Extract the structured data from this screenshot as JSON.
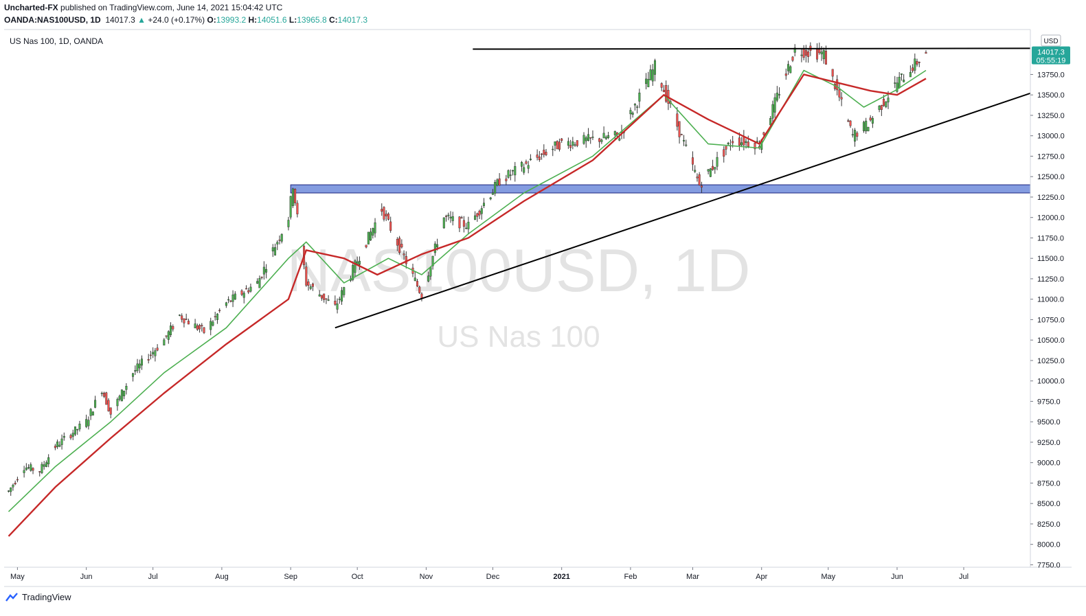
{
  "publish_line": {
    "author": "Uncharted-FX",
    "text": " published on TradingView.com, June 14, 2021 15:04:42 UTC"
  },
  "ohlc_line": {
    "symbol": "OANDA:NAS100USD, 1D",
    "last": "14017.3",
    "change": "+24.0 (+0.17%)",
    "o_label": "O:",
    "o": "13993.2",
    "h_label": "H:",
    "h": "14051.6",
    "l_label": "L:",
    "l": "13965.8",
    "c_label": "C:",
    "c": "14017.3"
  },
  "legend_text": "US Nas 100, 1D, OANDA",
  "watermark": {
    "symbol": "NAS100USD, 1D",
    "name": "US Nas 100"
  },
  "footer": {
    "brand": "TradingView"
  },
  "currency_badge": "USD",
  "price_tag": {
    "price": "14017.3",
    "countdown": "05:55:19"
  },
  "colors": {
    "up": "#26a69a",
    "down": "#ef5350",
    "candle_body_up": "#4caf50",
    "ema_fast": "#4caf50",
    "ema_slow": "#c62828",
    "zone_fill": "#5b7bd5",
    "zone_stroke": "#1a237e",
    "trendline": "#000000"
  },
  "chart_data": {
    "type": "candlestick",
    "y_axis_ticks": [
      7750,
      8000,
      8250,
      8500,
      8750,
      9000,
      9250,
      9500,
      9750,
      10000,
      10250,
      10500,
      10750,
      11000,
      11250,
      11500,
      11750,
      12000,
      12250,
      12500,
      12750,
      13000,
      13250,
      13500,
      13750
    ],
    "y_axis_labels": [
      "7750.0",
      "8000.0",
      "8250.0",
      "8500.0",
      "8750.0",
      "9000.0",
      "9250.0",
      "9500.0",
      "9750.0",
      "10000.0",
      "10250.0",
      "10500.0",
      "10750.0",
      "11000.0",
      "11250.0",
      "11500.0",
      "11750.0",
      "12000.0",
      "12250.0",
      "12500.0",
      "12750.0",
      "13000.0",
      "13250.0",
      "13500.0",
      "13750.0"
    ],
    "y_top_label": "1...",
    "ylim": [
      7720,
      14300
    ],
    "x_axis_labels": [
      "May",
      "Jun",
      "Jul",
      "Aug",
      "Sep",
      "Oct",
      "Nov",
      "Dec",
      "2021",
      "Feb",
      "Mar",
      "Apr",
      "May",
      "Jun",
      "Jul"
    ],
    "x_axis_dates": [
      "2020-05-01",
      "2020-06-01",
      "2020-07-01",
      "2020-08-01",
      "2020-09-01",
      "2020-10-01",
      "2020-11-01",
      "2020-12-01",
      "2021-01-01",
      "2021-02-01",
      "2021-03-01",
      "2021-04-01",
      "2021-05-01",
      "2021-06-01",
      "2021-07-01"
    ],
    "x_range": [
      "2020-04-25",
      "2021-07-31"
    ],
    "price_path": [
      [
        "2020-04-27",
        8650
      ],
      [
        "2020-05-04",
        8950
      ],
      [
        "2020-05-11",
        8900
      ],
      [
        "2020-05-18",
        9200
      ],
      [
        "2020-06-01",
        9500
      ],
      [
        "2020-06-08",
        9900
      ],
      [
        "2020-06-12",
        9600
      ],
      [
        "2020-06-22",
        10100
      ],
      [
        "2020-07-06",
        10500
      ],
      [
        "2020-07-13",
        10800
      ],
      [
        "2020-07-24",
        10600
      ],
      [
        "2020-08-03",
        10950
      ],
      [
        "2020-08-17",
        11200
      ],
      [
        "2020-08-31",
        12000
      ],
      [
        "2020-09-02",
        12400
      ],
      [
        "2020-09-08",
        11200
      ],
      [
        "2020-09-21",
        10900
      ],
      [
        "2020-10-12",
        12100
      ],
      [
        "2020-10-30",
        11050
      ],
      [
        "2020-11-09",
        12000
      ],
      [
        "2020-11-20",
        11900
      ],
      [
        "2020-12-04",
        12450
      ],
      [
        "2020-12-31",
        12900
      ],
      [
        "2021-01-27",
        13000
      ],
      [
        "2021-02-12",
        13850
      ],
      [
        "2021-03-04",
        12400
      ],
      [
        "2021-03-19",
        12950
      ],
      [
        "2021-03-31",
        12900
      ],
      [
        "2021-04-16",
        14050
      ],
      [
        "2021-04-29",
        14000
      ],
      [
        "2021-05-12",
        13000
      ],
      [
        "2021-05-19",
        13150
      ],
      [
        "2021-06-01",
        13650
      ],
      [
        "2021-06-14",
        14017
      ]
    ],
    "ema_fast_path": [
      [
        "2020-04-27",
        8400
      ],
      [
        "2020-05-18",
        8950
      ],
      [
        "2020-06-12",
        9500
      ],
      [
        "2020-07-06",
        10100
      ],
      [
        "2020-08-03",
        10650
      ],
      [
        "2020-08-31",
        11500
      ],
      [
        "2020-09-08",
        11700
      ],
      [
        "2020-09-25",
        11200
      ],
      [
        "2020-10-15",
        11500
      ],
      [
        "2020-10-30",
        11300
      ],
      [
        "2020-11-20",
        11800
      ],
      [
        "2020-12-15",
        12300
      ],
      [
        "2021-01-15",
        12750
      ],
      [
        "2021-02-16",
        13500
      ],
      [
        "2021-03-08",
        12900
      ],
      [
        "2021-03-31",
        12850
      ],
      [
        "2021-04-20",
        13800
      ],
      [
        "2021-05-05",
        13600
      ],
      [
        "2021-05-17",
        13350
      ],
      [
        "2021-05-31",
        13550
      ],
      [
        "2021-06-14",
        13800
      ]
    ],
    "ema_slow_path": [
      [
        "2020-04-27",
        8100
      ],
      [
        "2020-05-18",
        8700
      ],
      [
        "2020-06-12",
        9300
      ],
      [
        "2020-07-06",
        9850
      ],
      [
        "2020-08-03",
        10450
      ],
      [
        "2020-08-31",
        11000
      ],
      [
        "2020-09-08",
        11600
      ],
      [
        "2020-09-25",
        11500
      ],
      [
        "2020-10-10",
        11300
      ],
      [
        "2020-10-30",
        11550
      ],
      [
        "2020-11-20",
        11750
      ],
      [
        "2020-12-15",
        12200
      ],
      [
        "2021-01-15",
        12700
      ],
      [
        "2021-02-16",
        13500
      ],
      [
        "2021-03-08",
        13200
      ],
      [
        "2021-03-31",
        12900
      ],
      [
        "2021-04-20",
        13750
      ],
      [
        "2021-05-05",
        13650
      ],
      [
        "2021-05-20",
        13550
      ],
      [
        "2021-06-01",
        13500
      ],
      [
        "2021-06-14",
        13700
      ]
    ],
    "support_zone": {
      "from": "2020-09-01",
      "to": "2021-07-31",
      "low": 12300,
      "high": 12400
    },
    "rising_trendline": {
      "start": [
        "2020-09-21",
        10650
      ],
      "end": [
        "2021-07-31",
        13520
      ]
    },
    "resistance_line": {
      "start": [
        "2020-11-22",
        14060
      ],
      "end": [
        "2021-07-31",
        14070
      ]
    }
  }
}
